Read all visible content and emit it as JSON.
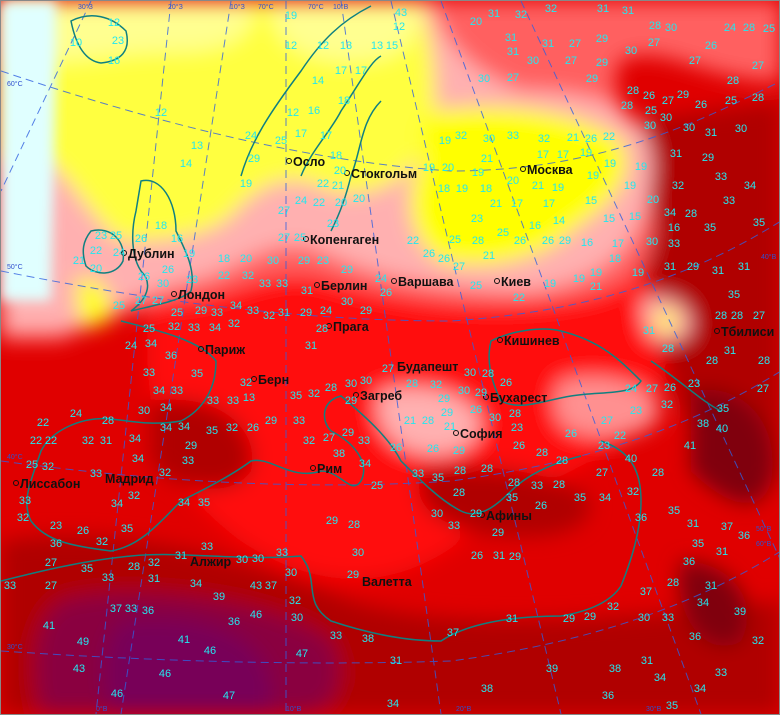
{
  "map": {
    "type": "temperature-map",
    "colors": {
      "light_cyan": "#e0ffff",
      "light_yellow": "#ffff80",
      "yellow": "#ffff00",
      "pink_light": "#ffc0c0",
      "pink": "#ff9090",
      "red_light": "#ff4040",
      "red": "#ff0000",
      "red_dark": "#d00000",
      "maroon": "#a00000",
      "purple": "#800050",
      "value_text": "#22e8f0",
      "coastline": "#108080",
      "gridline": "#3060e0"
    },
    "grid_labels": [
      "30°З",
      "20°З",
      "10°З",
      "70°С",
      "10°В",
      "70°С",
      "60°С",
      "50°С",
      "40°С",
      "30°С",
      "0°В",
      "10°В",
      "20°В",
      "30°В",
      "40°В",
      "50°В",
      "60°В"
    ],
    "cities": [
      "Осло",
      "Стокгольм",
      "Москва",
      "Дублин",
      "Копенгаген",
      "Лондон",
      "Берлин",
      "Варшава",
      "Киев",
      "Париж",
      "Прага",
      "Кишинев",
      "Будапешт",
      "Берн",
      "Загреб",
      "Бухарест",
      "Тбилиси",
      "София",
      "Мадрид",
      "Лиссабон",
      "Рим",
      "Афины",
      "Алжир",
      "Валетта"
    ],
    "station_values": [
      12,
      23,
      16,
      10,
      12,
      13,
      14,
      18,
      16,
      19,
      12,
      12,
      14,
      16,
      12,
      17,
      17,
      13,
      13,
      17,
      15,
      17,
      18,
      24,
      25,
      29,
      19,
      18,
      20,
      21,
      22,
      20,
      20,
      23,
      24,
      22,
      25,
      23,
      22,
      21,
      20,
      24,
      26,
      26,
      26,
      30,
      19,
      23,
      27,
      27,
      25,
      29,
      25,
      25,
      32,
      33,
      34,
      33,
      18,
      20,
      22,
      32,
      30,
      29,
      23,
      27,
      25,
      27,
      33,
      33,
      31,
      29,
      24,
      30,
      26,
      32,
      32,
      31,
      29,
      24,
      29,
      24,
      34,
      36,
      33,
      34,
      31,
      28,
      33,
      35,
      34,
      33,
      33,
      33,
      13,
      32,
      35,
      32,
      28,
      30,
      30,
      29,
      30,
      34,
      24,
      22,
      28,
      22,
      34,
      34,
      35,
      32,
      26,
      29,
      33,
      27,
      32,
      29,
      33,
      31,
      32,
      34,
      34,
      29,
      33,
      22,
      25,
      32,
      33,
      32,
      32,
      35,
      34,
      34,
      33,
      32,
      23,
      26,
      35,
      36,
      32,
      27,
      35,
      33,
      28,
      32,
      31,
      33,
      30,
      30,
      33,
      30,
      32,
      30,
      33,
      31,
      33,
      27,
      34,
      39,
      43,
      37,
      37,
      36,
      36,
      46,
      41,
      41,
      46,
      49,
      43,
      46,
      46,
      47,
      47,
      38,
      33,
      38,
      34,
      25,
      28,
      29,
      30,
      29,
      32,
      28,
      30,
      27,
      28,
      29,
      30,
      29,
      29,
      26,
      26,
      28,
      23,
      21,
      21,
      28,
      29,
      26,
      28,
      28,
      26,
      30,
      26,
      33,
      35,
      28,
      28,
      28,
      33,
      28,
      28,
      26,
      35,
      35,
      29,
      30,
      33,
      29,
      26,
      31,
      29,
      27,
      23,
      22,
      23,
      26,
      24,
      27,
      26,
      23,
      27,
      32,
      35,
      38,
      40,
      41,
      40,
      27,
      28,
      32,
      34,
      36,
      35,
      31,
      37,
      36,
      35,
      31,
      36,
      28,
      31,
      34,
      39,
      37,
      32,
      30,
      33,
      36,
      32,
      33,
      31,
      34,
      34,
      38,
      39,
      38,
      36,
      35,
      37,
      31,
      29,
      29,
      31,
      34,
      43,
      12,
      20,
      31,
      31,
      30,
      31,
      32,
      32,
      30,
      27,
      29,
      27,
      31,
      30,
      31,
      31,
      27,
      29,
      28,
      27,
      26,
      29,
      28,
      30,
      27,
      26,
      28,
      27,
      28,
      25,
      24,
      25,
      27,
      29,
      26,
      25,
      28,
      28,
      30,
      30,
      30,
      31,
      30,
      29,
      31,
      33,
      34,
      32,
      33,
      34,
      28,
      35,
      35,
      30,
      33,
      29,
      31,
      31,
      31,
      35,
      28,
      28,
      27,
      31,
      28,
      28,
      28,
      31,
      32,
      30,
      21,
      33,
      32,
      21,
      26,
      22,
      19,
      19,
      17,
      17,
      19,
      19,
      21,
      20,
      19,
      20,
      19,
      19,
      18,
      19,
      18,
      21,
      17,
      17,
      16,
      14,
      15,
      15,
      15,
      17,
      19,
      19,
      20,
      16,
      23,
      25,
      25,
      28,
      26,
      26,
      29,
      16,
      18,
      19,
      19,
      19,
      21,
      22,
      26,
      26,
      27,
      25,
      22,
      19,
      21,
      19,
      18,
      22,
      22,
      22,
      24,
      24
    ]
  }
}
